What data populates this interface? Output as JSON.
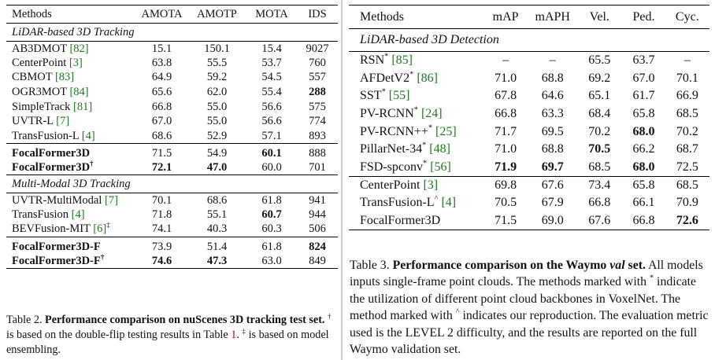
{
  "table2": {
    "headers": [
      "Methods",
      "AMOTA",
      "AMOTP",
      "MOTA",
      "IDS"
    ],
    "section1": "LiDAR-based 3D Tracking",
    "rows1": [
      {
        "name": "AB3DMOT",
        "cite": "[82]",
        "v": [
          "15.1",
          "150.1",
          "15.4",
          "9027"
        ]
      },
      {
        "name": "CenterPoint",
        "cite": "[3]",
        "v": [
          "63.8",
          "55.5",
          "53.7",
          "760"
        ]
      },
      {
        "name": "CBMOT",
        "cite": "[83]",
        "v": [
          "64.9",
          "59.2",
          "54.5",
          "557"
        ]
      },
      {
        "name": "OGR3MOT",
        "cite": "[84]",
        "v": [
          "65.6",
          "62.0",
          "55.4",
          "288"
        ]
      },
      {
        "name": "SimpleTrack",
        "cite": "[81]",
        "v": [
          "66.8",
          "55.0",
          "56.6",
          "575"
        ]
      },
      {
        "name": "UVTR-L",
        "cite": "[7]",
        "v": [
          "67.0",
          "55.0",
          "56.6",
          "774"
        ]
      },
      {
        "name": "TransFusion-L",
        "cite": "[4]",
        "v": [
          "68.6",
          "52.9",
          "57.1",
          "893"
        ]
      }
    ],
    "ours1": [
      {
        "name": "FocalFormer3D",
        "mark": "",
        "v": [
          "71.5",
          "54.9",
          "60.1",
          "888"
        ]
      },
      {
        "name": "FocalFormer3D",
        "mark": "†",
        "v": [
          "72.1",
          "47.0",
          "60.0",
          "701"
        ]
      }
    ],
    "section2": "Multi-Modal 3D Tracking",
    "rows2": [
      {
        "name": "UVTR-MultiModal",
        "cite": "[7]",
        "mark": "",
        "v": [
          "70.1",
          "68.6",
          "61.8",
          "941"
        ]
      },
      {
        "name": "TransFusion",
        "cite": "[4]",
        "mark": "",
        "v": [
          "71.8",
          "55.1",
          "60.7",
          "944"
        ]
      },
      {
        "name": "BEVFusion-MIT",
        "cite": "[6]",
        "mark": "‡",
        "v": [
          "74.1",
          "40.3",
          "60.3",
          "506"
        ]
      }
    ],
    "ours2": [
      {
        "name": "FocalFormer3D-F",
        "mark": "",
        "v": [
          "73.9",
          "51.4",
          "61.8",
          "824"
        ]
      },
      {
        "name": "FocalFormer3D-F",
        "mark": "†",
        "v": [
          "74.6",
          "47.3",
          "63.0",
          "849"
        ]
      }
    ],
    "caption": {
      "label": "Table 2.",
      "title": "Performance comparison on nuScenes 3D tracking test set.",
      "s1_mark": "†",
      "s1_a": " is based on the double-flip testing results in Table ",
      "s1_ref": "1",
      "s1_b": ".",
      "s2_mark": "‡",
      "s2": " is based on model ensembling."
    }
  },
  "table3": {
    "headers": [
      "Methods",
      "mAP",
      "mAPH",
      "Vel.",
      "Ped.",
      "Cyc."
    ],
    "section": "LiDAR-based 3D Detection",
    "rows1": [
      {
        "name": "RSN",
        "mark": "*",
        "cite": "[85]",
        "v": [
          "–",
          "–",
          "65.5",
          "63.7",
          "–"
        ]
      },
      {
        "name": "AFDetV2",
        "mark": "*",
        "cite": "[86]",
        "v": [
          "71.0",
          "68.8",
          "69.2",
          "67.0",
          "70.1"
        ]
      },
      {
        "name": "SST",
        "mark": "*",
        "cite": "[55]",
        "v": [
          "67.8",
          "64.6",
          "65.1",
          "61.7",
          "66.9"
        ]
      },
      {
        "name": "PV-RCNN",
        "mark": "*",
        "cite": "[24]",
        "v": [
          "66.8",
          "63.3",
          "68.4",
          "65.8",
          "68.5"
        ]
      },
      {
        "name": "PV-RCNN++",
        "mark": "*",
        "cite": "[25]",
        "v": [
          "71.7",
          "69.5",
          "70.2",
          "68.0",
          "70.2"
        ]
      },
      {
        "name": "PillarNet-34",
        "mark": "*",
        "cite": "[48]",
        "v": [
          "71.0",
          "68.8",
          "70.5",
          "66.2",
          "68.7"
        ]
      },
      {
        "name": "FSD-spconv",
        "mark": "*",
        "cite": "[56]",
        "v": [
          "71.9",
          "69.7",
          "68.5",
          "68.0",
          "72.5"
        ]
      }
    ],
    "rows2": [
      {
        "name": "CenterPoint",
        "mark": "",
        "cite": "[3]",
        "v": [
          "69.8",
          "67.6",
          "73.4",
          "65.8",
          "68.5"
        ]
      },
      {
        "name": "TransFusion-L",
        "mark": "^",
        "cite": "[4]",
        "v": [
          "70.5",
          "67.9",
          "66.8",
          "66.1",
          "70.9"
        ]
      },
      {
        "name": "FocalFormer3D",
        "mark": "",
        "cite": "",
        "v": [
          "71.5",
          "69.0",
          "67.6",
          "66.8",
          "72.6"
        ]
      }
    ],
    "caption": {
      "label": "Table 3.",
      "title_a": "Performance comparison on the Waymo ",
      "title_em": "val",
      "title_b": " set.",
      "s1": " All models inputs single-frame point clouds. The methods marked with ",
      "s1_mark": "*",
      "s2": " indicate the utilization of different point cloud backbones in VoxelNet. The method marked with ",
      "s2_mark": "^",
      "s3": " indicates our reproduction. The evaluation metric used is the LEVEL 2 difficulty, and the results are reported on the full Waymo validation set."
    }
  }
}
